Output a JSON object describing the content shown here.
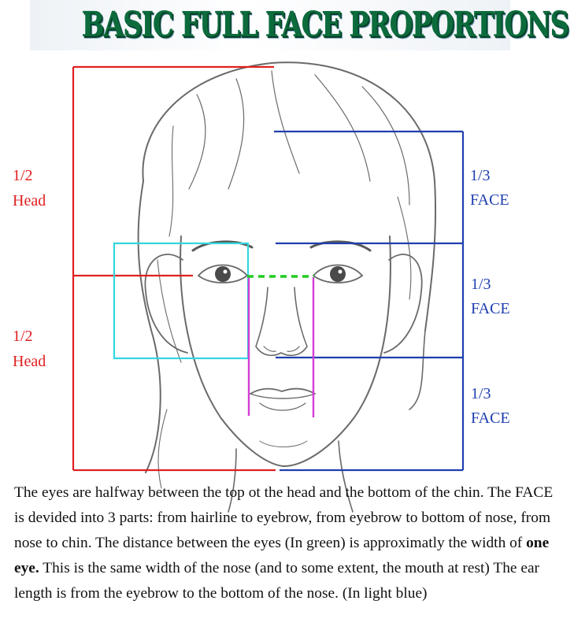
{
  "title": "BASIC FULL FACE PROPORTIONS",
  "labels": {
    "upper_head_fraction": "1/2",
    "upper_head_word": "Head",
    "lower_head_fraction": "1/2",
    "lower_head_word": "Head",
    "face_top_fraction": "1/3",
    "face_top_word": "FACE",
    "face_middle_fraction": "1/3",
    "face_middle_word": "FACE",
    "face_bottom_fraction": "1/3",
    "face_bottom_word": "FACE"
  },
  "description": {
    "part1": "The eyes are halfway between the top ot the head and the bottom of the chin.  The FACE is devided into 3 parts: from hairline to eyebrow, from eyebrow to bottom of nose, from nose to chin.  The distance between the eyes (In green) is approximatly the width of ",
    "bold": "one eye.",
    "part2": "  This is the same width of the nose (and to some extent, the mouth at rest)  The ear length is from the eyebrow to the bottom of the nose. (In light blue)"
  },
  "colors": {
    "head_lines": "#e02020",
    "face_lines": "#1f3fb0",
    "ear_box": "#33d6e0",
    "eye_distance": "#22cc22",
    "nose_width": "#d63cd6",
    "sketch": "#555555"
  }
}
